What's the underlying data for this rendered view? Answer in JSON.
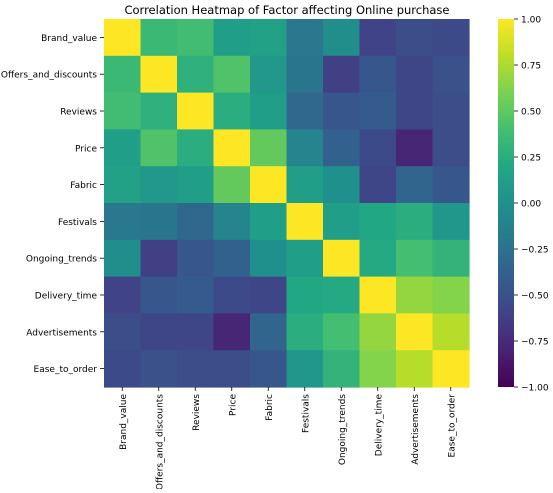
{
  "chart_data": {
    "type": "heatmap",
    "title": "Correlation Heatmap of Factor affecting Online purchase",
    "xlabel": "",
    "ylabel": "",
    "colormap": "viridis",
    "color_range": [
      -1.0,
      1.0
    ],
    "colorbar_ticks": [
      "1.00",
      "0.75",
      "0.50",
      "0.25",
      "0.00",
      "−0.25",
      "−0.50",
      "−0.75",
      "−1.00"
    ],
    "colorbar_tick_values": [
      1.0,
      0.75,
      0.5,
      0.25,
      0.0,
      -0.25,
      -0.5,
      -0.75,
      -1.0
    ],
    "colorbar_position": "right",
    "rows": [
      "Brand_value",
      "Offers_and_discounts",
      "Reviews",
      "Price",
      "Fabric",
      "Festivals",
      "Ongoing_trends",
      "Delivery_time",
      "Advertisements",
      "Ease_to_order"
    ],
    "columns": [
      "Brand_value",
      "Offers_and_discounts",
      "Reviews",
      "Price",
      "Fabric",
      "Festivals",
      "Ongoing_trends",
      "Delivery_time",
      "Advertisements",
      "Ease_to_order"
    ],
    "values": [
      [
        1.0,
        0.35,
        0.38,
        0.12,
        0.15,
        -0.2,
        -0.02,
        -0.6,
        -0.52,
        -0.55
      ],
      [
        0.35,
        1.0,
        0.28,
        0.44,
        0.07,
        -0.22,
        -0.62,
        -0.45,
        -0.58,
        -0.5
      ],
      [
        0.38,
        0.28,
        1.0,
        0.25,
        0.12,
        -0.32,
        -0.45,
        -0.42,
        -0.58,
        -0.52
      ],
      [
        0.12,
        0.44,
        0.25,
        1.0,
        0.52,
        -0.1,
        -0.38,
        -0.55,
        -0.78,
        -0.52
      ],
      [
        0.15,
        0.07,
        0.12,
        0.52,
        1.0,
        0.12,
        0.0,
        -0.58,
        -0.35,
        -0.45
      ],
      [
        -0.2,
        -0.22,
        -0.32,
        -0.1,
        0.12,
        1.0,
        0.12,
        0.2,
        0.25,
        0.05
      ],
      [
        -0.02,
        -0.62,
        -0.45,
        -0.38,
        0.0,
        0.12,
        1.0,
        0.22,
        0.4,
        0.3
      ],
      [
        -0.6,
        -0.45,
        -0.42,
        -0.55,
        -0.58,
        0.2,
        0.22,
        1.0,
        0.68,
        0.63
      ],
      [
        -0.52,
        -0.58,
        -0.58,
        -0.78,
        -0.35,
        0.25,
        0.4,
        0.68,
        1.0,
        0.78
      ],
      [
        -0.55,
        -0.5,
        -0.52,
        -0.52,
        -0.45,
        0.05,
        0.3,
        0.63,
        0.78,
        1.0
      ]
    ]
  }
}
